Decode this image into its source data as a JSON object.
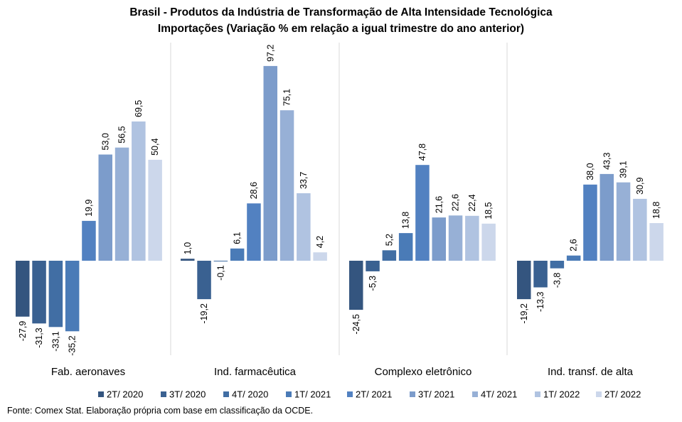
{
  "chart_data": {
    "type": "bar",
    "title_line1": "Brasil - Produtos da Indústria de Transformação  de Alta Intensidade Tecnológica",
    "title_line2": "Importações (Variação % em relação a igual trimestre do ano anterior)",
    "categories": [
      "Fab. aeronaves",
      "Ind. farmacêutica",
      "Complexo eletrônico",
      "Ind. transf. de alta"
    ],
    "series": [
      {
        "name": "2T/ 2020",
        "color": "#34557f",
        "values": [
          -27.9,
          1.0,
          -24.5,
          -19.2
        ],
        "labels": [
          "-27,9",
          "1,0",
          "-24,5",
          "-19,2"
        ]
      },
      {
        "name": "3T/ 2020",
        "color": "#3a6191",
        "values": [
          -31.3,
          -19.2,
          -5.3,
          -13.3
        ],
        "labels": [
          "-31,3",
          "-19,2",
          "-5,3",
          "-13,3"
        ]
      },
      {
        "name": "4T/ 2020",
        "color": "#416ea4",
        "values": [
          -33.1,
          -0.1,
          5.2,
          -3.8
        ],
        "labels": [
          "-33,1",
          "-0,1",
          "5,2",
          "-3,8"
        ]
      },
      {
        "name": "1T/ 2021",
        "color": "#4a7bb7",
        "values": [
          -35.2,
          6.1,
          13.8,
          2.6
        ],
        "labels": [
          "-35,2",
          "6,1",
          "13,8",
          "2,6"
        ]
      },
      {
        "name": "2T/ 2021",
        "color": "#5281c1",
        "values": [
          19.9,
          28.6,
          47.8,
          38.0
        ],
        "labels": [
          "19,9",
          "28,6",
          "47,8",
          "38,0"
        ]
      },
      {
        "name": "3T/ 2021",
        "color": "#7c9ccb",
        "values": [
          53.0,
          97.2,
          21.6,
          43.3
        ],
        "labels": [
          "53,0",
          "97,2",
          "21,6",
          "43,3"
        ]
      },
      {
        "name": "4T/ 2021",
        "color": "#97b0d6",
        "values": [
          56.5,
          75.1,
          22.6,
          39.1
        ],
        "labels": [
          "56,5",
          "75,1",
          "22,6",
          "39,1"
        ]
      },
      {
        "name": "1T/ 2022",
        "color": "#b0c3e1",
        "values": [
          69.5,
          33.7,
          22.4,
          30.9
        ],
        "labels": [
          "69,5",
          "33,7",
          "22,4",
          "30,9"
        ]
      },
      {
        "name": "2T/ 2022",
        "color": "#ccd7eb",
        "values": [
          50.4,
          4.2,
          18.5,
          18.8
        ],
        "labels": [
          "50,4",
          "4,2",
          "18,5",
          "18,8"
        ]
      }
    ],
    "grid": false,
    "legend_position": "bottom"
  },
  "source": "Fonte: Comex Stat. Elaboração própria com base em classificação da OCDE."
}
